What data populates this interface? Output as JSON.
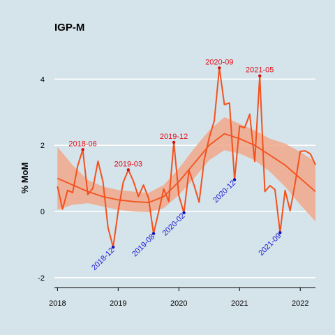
{
  "chart_data": {
    "type": "line",
    "title": "IGP-M",
    "xlabel": "",
    "ylabel": "% MoM",
    "xlim": [
      2017.95,
      2022.25
    ],
    "ylim": [
      -2.3,
      5.0
    ],
    "x_ticks": [
      2018,
      2019,
      2020,
      2021,
      2022
    ],
    "x_tick_labels": [
      "2018",
      "2019",
      "2020",
      "2021",
      "2022"
    ],
    "y_ticks": [
      -2,
      0,
      2,
      4
    ],
    "y_tick_labels": [
      "-2",
      "0",
      "2",
      "4"
    ],
    "grid": true,
    "legend": "none",
    "colors": {
      "line": "#f4511e",
      "band": "#f0a88a",
      "max_point": "#d01010",
      "min_point": "#1010c0",
      "background": "#d5e3ea",
      "grid": "#ffffff"
    },
    "series": {
      "x": [
        2018.0,
        2018.083,
        2018.167,
        2018.25,
        2018.333,
        2018.417,
        2018.5,
        2018.583,
        2018.667,
        2018.75,
        2018.833,
        2018.917,
        2019.0,
        2019.083,
        2019.167,
        2019.25,
        2019.333,
        2019.417,
        2019.5,
        2019.583,
        2019.667,
        2019.75,
        2019.833,
        2019.917,
        2020.0,
        2020.083,
        2020.167,
        2020.25,
        2020.333,
        2020.417,
        2020.5,
        2020.583,
        2020.667,
        2020.75,
        2020.833,
        2020.917,
        2021.0,
        2021.083,
        2021.167,
        2021.25,
        2021.333,
        2021.417,
        2021.5,
        2021.583,
        2021.667,
        2021.75,
        2021.833,
        2021.917,
        2022.0,
        2022.083,
        2022.167,
        2022.25
      ],
      "y": [
        0.76,
        0.07,
        0.64,
        0.57,
        1.38,
        1.87,
        0.51,
        0.7,
        1.52,
        0.89,
        -0.49,
        -1.08,
        0.01,
        0.88,
        1.26,
        0.92,
        0.45,
        0.8,
        0.4,
        -0.67,
        -0.01,
        0.68,
        0.3,
        2.09,
        0.48,
        -0.04,
        1.24,
        0.8,
        0.28,
        1.56,
        2.23,
        2.74,
        4.34,
        3.23,
        3.28,
        0.96,
        2.58,
        2.53,
        2.94,
        1.51,
        4.1,
        0.6,
        0.78,
        0.66,
        -0.64,
        0.64,
        0.02,
        0.87,
        1.82,
        1.83,
        1.74,
        1.41
      ]
    },
    "smooth": {
      "x": [
        2018.0,
        2018.25,
        2018.5,
        2018.75,
        2019.0,
        2019.25,
        2019.5,
        2019.75,
        2020.0,
        2020.25,
        2020.5,
        2020.75,
        2021.0,
        2021.25,
        2021.5,
        2021.75,
        2022.0,
        2022.25
      ],
      "y": [
        1.0,
        0.8,
        0.6,
        0.45,
        0.35,
        0.3,
        0.27,
        0.45,
        0.9,
        1.45,
        2.0,
        2.35,
        2.2,
        2.0,
        1.7,
        1.4,
        1.0,
        0.6
      ],
      "lower": [
        0.05,
        0.2,
        0.25,
        0.15,
        0.05,
        0.0,
        -0.02,
        0.1,
        0.5,
        1.0,
        1.55,
        1.85,
        1.75,
        1.55,
        1.2,
        0.75,
        0.2,
        -0.3
      ],
      "upper": [
        1.95,
        1.4,
        0.95,
        0.75,
        0.65,
        0.6,
        0.56,
        0.8,
        1.3,
        1.9,
        2.45,
        2.85,
        2.65,
        2.45,
        2.2,
        2.05,
        1.8,
        1.5
      ]
    },
    "annotations_top": [
      {
        "label": "2018-06",
        "x": 2018.417,
        "y": 1.87
      },
      {
        "label": "2019-03",
        "x": 2019.167,
        "y": 1.26
      },
      {
        "label": "2019-12",
        "x": 2019.917,
        "y": 2.09
      },
      {
        "label": "2020-09",
        "x": 2020.667,
        "y": 4.34
      },
      {
        "label": "2021-05",
        "x": 2021.333,
        "y": 4.1
      }
    ],
    "annotations_bottom": [
      {
        "label": "2018-12",
        "x": 2018.917,
        "y": -1.08
      },
      {
        "label": "2019-08",
        "x": 2019.583,
        "y": -0.67
      },
      {
        "label": "2020-02",
        "x": 2020.083,
        "y": -0.04
      },
      {
        "label": "2020-12",
        "x": 2020.917,
        "y": 0.96
      },
      {
        "label": "2021-09",
        "x": 2021.667,
        "y": -0.64
      }
    ]
  }
}
